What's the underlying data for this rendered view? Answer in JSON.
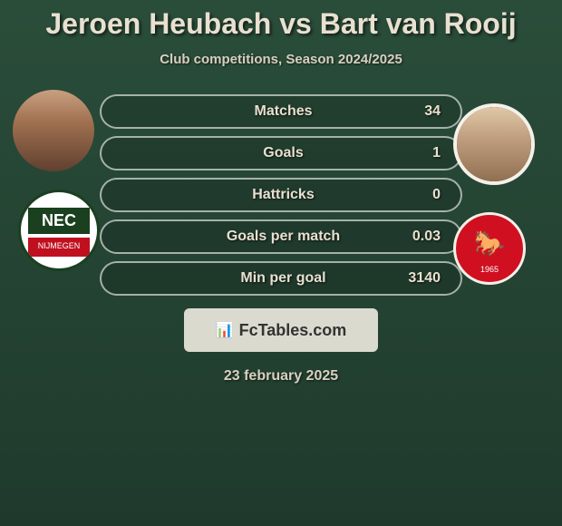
{
  "title": "Jeroen Heubach vs Bart van Rooij",
  "subtitle": "Club competitions, Season 2024/2025",
  "date": "23 february 2025",
  "branding": {
    "text": "FcTables.com",
    "icon": "📊"
  },
  "stats": [
    {
      "label": "Matches",
      "value": "34"
    },
    {
      "label": "Goals",
      "value": "1"
    },
    {
      "label": "Hattricks",
      "value": "0"
    },
    {
      "label": "Goals per match",
      "value": "0.03"
    },
    {
      "label": "Min per goal",
      "value": "3140"
    }
  ],
  "players": {
    "left": {
      "name": "Jeroen Heubach"
    },
    "right": {
      "name": "Bart van Rooij"
    }
  },
  "teams": {
    "left": {
      "name": "NEC",
      "city": "NIJMEGEN"
    },
    "right": {
      "name": "FC Twente",
      "year": "1965"
    }
  },
  "colors": {
    "background_top": "#2a4d3a",
    "background_bottom": "#1f3a2c",
    "text": "#e8e0d0",
    "bar_border": "rgba(255,255,255,0.6)",
    "twente_red": "#d01020",
    "nec_green": "#1a4020",
    "nec_red": "#c01020"
  }
}
